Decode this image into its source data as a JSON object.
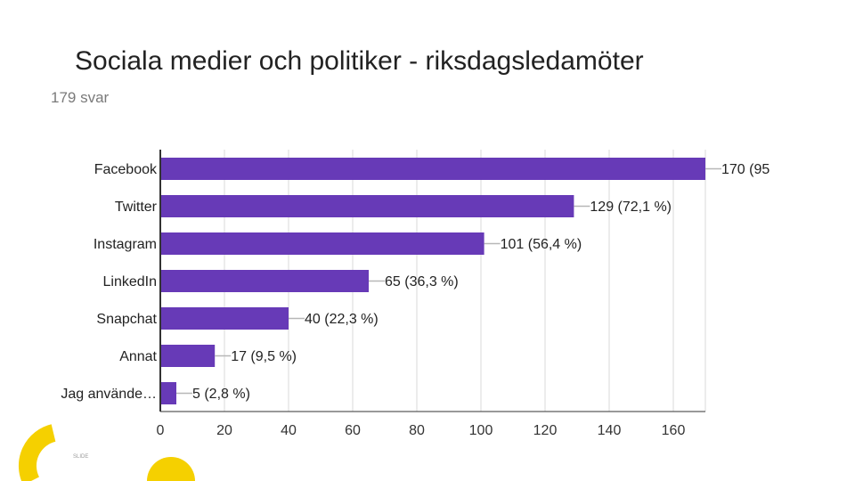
{
  "slide": {
    "title": "Sociala medier och politiker - riksdagsledamöter",
    "footer_text": "SLIDE"
  },
  "chart_data": {
    "type": "bar",
    "orientation": "horizontal",
    "title": "Sociala medier och politiker - riksdagsledamöter",
    "subtitle": "179 svar",
    "categories": [
      "Facebook",
      "Twitter",
      "Instagram",
      "LinkedIn",
      "Snapchat",
      "Annat",
      "Jag använde…"
    ],
    "values": [
      170,
      129,
      101,
      65,
      40,
      17,
      5
    ],
    "data_labels": [
      "170 (95",
      "129 (72,1 %)",
      "101 (56,4 %)",
      "65 (36,3 %)",
      "40 (22,3 %)",
      "17 (9,5 %)",
      "5 (2,8 %)"
    ],
    "xlim": [
      0,
      170
    ],
    "xticks": [
      0,
      20,
      40,
      60,
      80,
      100,
      120,
      140,
      160
    ],
    "xlabel": "",
    "ylabel": "",
    "grid": true,
    "colors": {
      "bar": "#673ab7",
      "grid": "#d9d9d9",
      "axis": "#333333",
      "leader": "#b7b7b7",
      "logo": "#f5d000"
    }
  }
}
